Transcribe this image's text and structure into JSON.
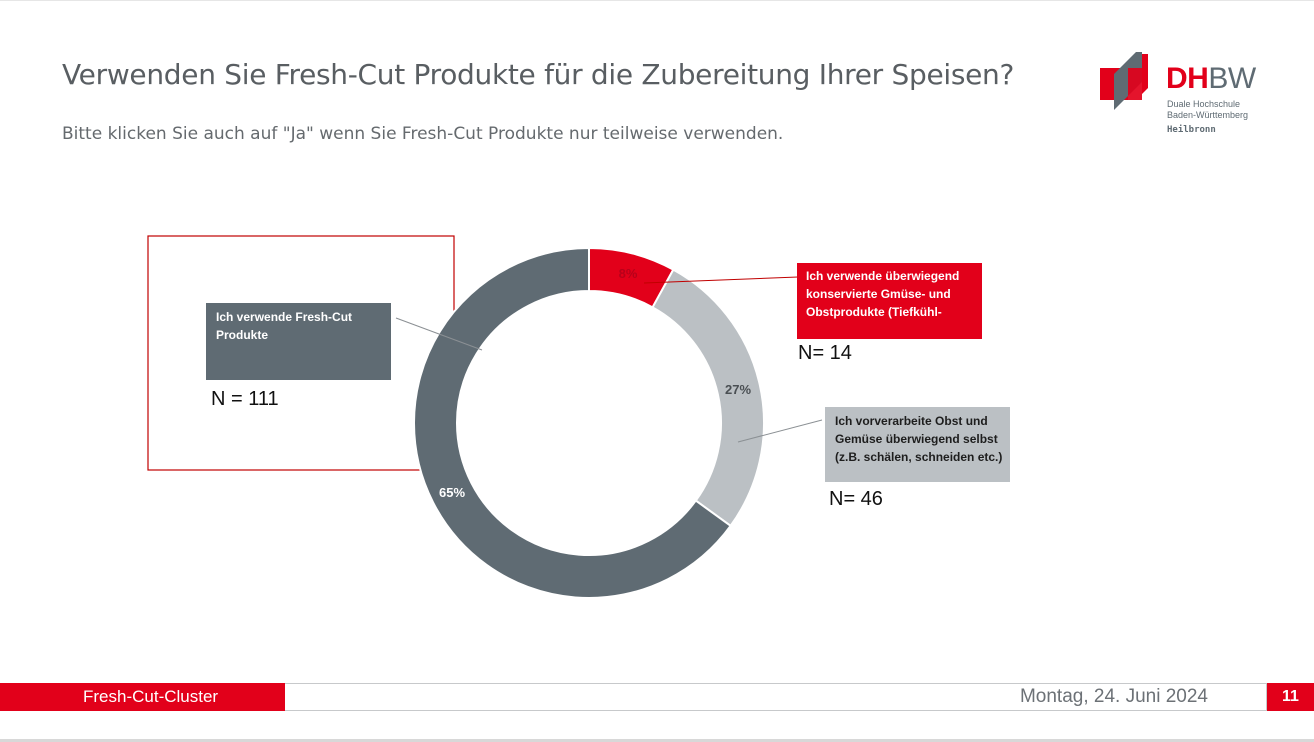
{
  "slide": {
    "title": "Verwenden Sie Fresh-Cut Produkte für die Zubereitung Ihrer Speisen?",
    "subtitle": "Bitte klicken Sie auch auf \"Ja\" wenn Sie Fresh-Cut Produkte nur teilweise verwenden."
  },
  "logo": {
    "name_red": "DH",
    "name_gray": "BW",
    "line1": "Duale Hochschule",
    "line2": "Baden-Württemberg",
    "city": "Heilbronn"
  },
  "footer": {
    "left_label": "Fresh-Cut-Cluster",
    "date": "Montag, 24. Juni 2024",
    "page_number": "11"
  },
  "colors": {
    "accent_red": "#e2001a",
    "dark_gray": "#5f6b73",
    "light_gray": "#bbc0c4",
    "highlight_border": "#c00000"
  },
  "chart_data": {
    "type": "pie",
    "variant": "donut",
    "series": [
      {
        "label": "Ich verwende überwiegend konserviert Gmüse- und Obstprodukte (Tiefkühl-",
        "label_lines": [
          "Ich verwende überwiegend",
          "konservierte Gmüse- und",
          "Obstprodukte (Tiefkühl-"
        ],
        "percent": 8,
        "percent_label": "8%",
        "n_label": "N= 14",
        "color": "#e2001a"
      },
      {
        "label": "Ich vorverarbeite Obst und Gemüse überwiegend selbst (z.B. schälen, schneiden etc.)",
        "label_lines": [
          "Ich vorverarbeite Obst und",
          "Gemüse überwiegend selbst",
          "(z.B. schälen, schneiden etc.)"
        ],
        "percent": 27,
        "percent_label": "27%",
        "n_label": "N= 46",
        "color": "#bbc0c4"
      },
      {
        "label": "Ich verwende Fresh-Cut Produkte",
        "label_lines": [
          "Ich verwende Fresh-Cut",
          "Produkte"
        ],
        "percent": 65,
        "percent_label": "65%",
        "n_label": "N = 111",
        "color": "#5f6b73"
      }
    ]
  }
}
